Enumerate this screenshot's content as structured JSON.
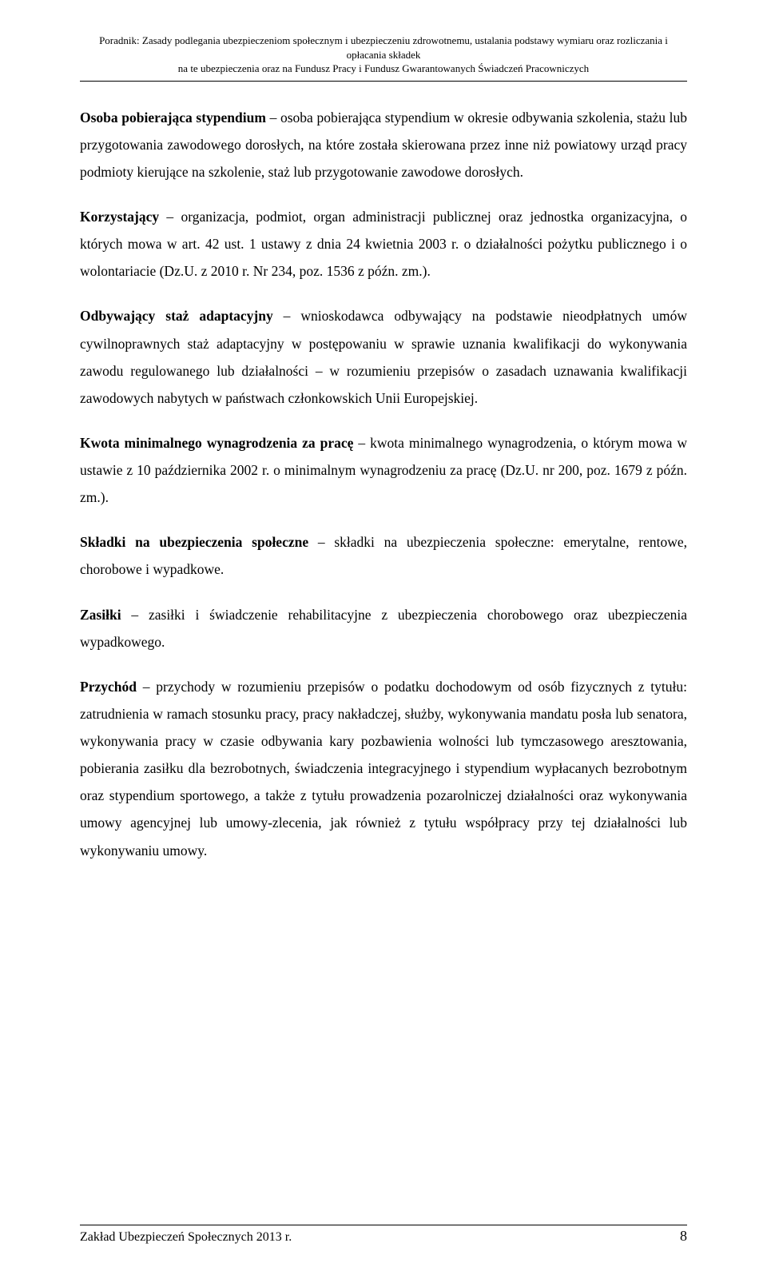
{
  "header": {
    "label": "Poradnik: ",
    "line1": "Zasady podlegania ubezpieczeniom społecznym i ubezpieczeniu zdrowotnemu, ustalania podstawy wymiaru oraz rozliczania i opłacania składek",
    "line2": "na te ubezpieczenia oraz na Fundusz Pracy i Fundusz Gwarantowanych Świadczeń Pracowniczych"
  },
  "paragraphs": {
    "p1": {
      "term": "Osoba pobierająca stypendium",
      "rest": " – osoba pobierająca stypendium w okresie odbywania szkolenia, stażu lub przygotowania zawodowego dorosłych, na które została skierowana przez inne niż powiatowy urząd pracy podmioty kierujące na szkolenie, staż lub przygotowanie zawodowe dorosłych."
    },
    "p2": {
      "term": "Korzystający",
      "rest": " – organizacja, podmiot, organ administracji publicznej oraz jednostka organizacyjna, o których mowa w art. 42 ust. 1 ustawy z dnia 24 kwietnia 2003 r. o działalności pożytku publicznego i o wolontariacie (Dz.U. z 2010 r. Nr 234, poz. 1536 z późn. zm.)."
    },
    "p3": {
      "term": "Odbywający staż adaptacyjny",
      "rest": " – wnioskodawca odbywający na podstawie nieodpłatnych umów cywilnoprawnych staż adaptacyjny w postępowaniu w sprawie uznania kwalifikacji do wykonywania zawodu regulowanego lub działalności – w rozumieniu przepisów o zasadach uznawania kwalifikacji zawodowych nabytych w państwach członkowskich Unii Europejskiej."
    },
    "p4": {
      "term": "Kwota minimalnego wynagrodzenia za pracę",
      "rest": " – kwota minimalnego wynagrodzenia, o którym mowa w ustawie z 10 października 2002 r. o minimalnym wynagrodzeniu za pracę (Dz.U. nr 200, poz. 1679 z późn. zm.)."
    },
    "p5": {
      "term": "Składki na ubezpieczenia społeczne",
      "rest": " – składki na ubezpieczenia społeczne: emerytalne, rentowe, chorobowe i wypadkowe."
    },
    "p6": {
      "term": "Zasiłki",
      "rest": " – zasiłki i świadczenie rehabilitacyjne z ubezpieczenia chorobowego oraz ubezpieczenia wypadkowego."
    },
    "p7": {
      "term": "Przychód",
      "rest": " – przychody w rozumieniu przepisów o podatku dochodowym od osób fizycznych z tytułu: zatrudnienia w ramach stosunku pracy, pracy nakładczej, służby, wykonywania mandatu posła lub senatora, wykonywania pracy w czasie odbywania kary pozbawienia wolności lub tymczasowego aresztowania, pobierania zasiłku dla bezrobotnych, świadczenia integracyjnego i stypendium wypłacanych bezrobotnym oraz stypendium sportowego, a także z tytułu prowadzenia pozarolniczej działalności oraz wykonywania umowy agencyjnej lub umowy-zlecenia, jak również z tytułu współpracy przy tej działalności lub wykonywaniu umowy."
    }
  },
  "footer": {
    "text": "Zakład Ubezpieczeń Społecznych 2013 r.",
    "page": "8"
  }
}
